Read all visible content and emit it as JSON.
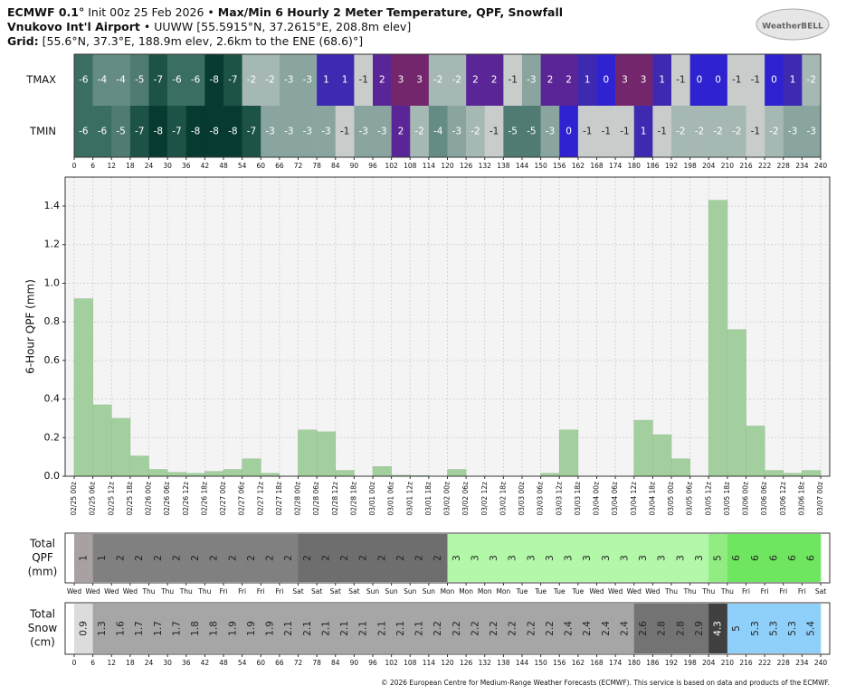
{
  "header": {
    "model": "ECMWF 0.1°",
    "init": "Init 00z 25 Feb 2026 •",
    "title": "Max/Min 6 Hourly 2 Meter Temperature, QPF, Snowfall",
    "station": "Vnukovo Int'l Airport",
    "station_info": "• UUWW [55.5915°N, 37.2615°E, 208.8m elev]",
    "grid_label": "Grid:",
    "grid_info": "[55.6°N, 37.3°E, 188.9m elev, 2.6km to the ENE (68.6)°]",
    "logo": "WeatherBELL"
  },
  "footer": "© 2026 European Centre for Medium-Range Weather Forecasts (ECMWF). This service is based on data and products of the ECMWF.",
  "chart_data": [
    {
      "type": "heatmap",
      "xlim": [
        0,
        240
      ],
      "xticks": [
        0,
        6,
        12,
        18,
        24,
        30,
        36,
        42,
        48,
        54,
        60,
        66,
        72,
        78,
        84,
        90,
        96,
        102,
        108,
        114,
        120,
        126,
        132,
        138,
        144,
        150,
        156,
        162,
        168,
        174,
        180,
        186,
        192,
        198,
        204,
        210,
        216,
        222,
        228,
        234,
        240
      ],
      "rows": [
        {
          "name": "TMAX",
          "values": [
            -6,
            -4,
            -4,
            -5,
            -7,
            -6,
            -6,
            -8,
            -7,
            -2,
            -2,
            -3,
            -3,
            1,
            1,
            -1,
            2,
            3,
            3,
            -2,
            -2,
            2,
            2,
            -1,
            -3,
            2,
            2,
            1,
            0,
            3,
            3,
            1,
            -1,
            0,
            0,
            -1,
            -1,
            0,
            1,
            -2
          ]
        },
        {
          "name": "TMIN",
          "values": [
            -6,
            -6,
            -5,
            -7,
            -8,
            -7,
            -8,
            -8,
            -8,
            -7,
            -3,
            -3,
            -3,
            -3,
            -1,
            -3,
            -3,
            2,
            -2,
            -4,
            -3,
            -2,
            -1,
            -5,
            -5,
            -3,
            0,
            -1,
            -1,
            -1,
            1,
            -1,
            -2,
            -2,
            -2,
            -2,
            -1,
            -2,
            -3,
            -3
          ]
        }
      ],
      "colorscale": [
        [
          -8,
          "#073b31"
        ],
        [
          -7,
          "#1d5347"
        ],
        [
          -6,
          "#3b6e63"
        ],
        [
          -5,
          "#4f7b72"
        ],
        [
          -4,
          "#648c84"
        ],
        [
          -3,
          "#8aa59f"
        ],
        [
          -2,
          "#a6b8b4"
        ],
        [
          -1,
          "#c8cdcc"
        ],
        [
          0,
          "#2f22d0"
        ],
        [
          1,
          "#3d2ab0"
        ],
        [
          2,
          "#5a2596"
        ],
        [
          3,
          "#73266b"
        ]
      ]
    },
    {
      "type": "histogram",
      "ylabel": "6-Hour QPF (mm)",
      "color": "#a3cf9e",
      "grid": true,
      "ylim": [
        0,
        1.55
      ],
      "yticks": [
        {
          "value": 0,
          "label": "0.0"
        },
        0.2,
        0.4,
        0.6,
        0.8,
        {
          "value": 1,
          "label": "1.0"
        },
        1.2,
        1.4
      ],
      "bins": [
        "02/25 00z",
        "02/25 06z",
        "02/25 12z",
        "02/25 18z",
        "02/26 00z",
        "02/26 06z",
        "02/26 12z",
        "02/26 18z",
        "02/27 00z",
        "02/27 06z",
        "02/27 12z",
        "02/27 18z",
        "02/28 00z",
        "02/28 06z",
        "02/28 12z",
        "02/28 18z",
        "03/01 00z",
        "03/01 06z",
        "03/01 12z",
        "03/01 18z",
        "03/02 00z",
        "03/02 06z",
        "03/02 12z",
        "03/02 18z",
        "03/03 00z",
        "03/03 06z",
        "03/03 12z",
        "03/03 18z",
        "03/04 00z",
        "03/04 06z",
        "03/04 12z",
        "03/04 18z",
        "03/05 00z",
        "03/05 06z",
        "03/05 12z",
        "03/05 18z",
        "03/06 00z",
        "03/06 06z",
        "03/06 12z",
        "03/06 18z",
        "03/07 00z"
      ],
      "values": [
        0.92,
        0.37,
        0.3,
        0.105,
        0.035,
        0.02,
        0.015,
        0.025,
        0.035,
        0.09,
        0.015,
        0,
        0.24,
        0.23,
        0.03,
        0,
        0.05,
        0.005,
        0.003,
        0,
        0.035,
        0,
        0,
        0,
        0,
        0.015,
        0.24,
        0,
        0,
        0,
        0.29,
        0.215,
        0.09,
        0,
        1.43,
        0.76,
        0.26,
        0.03,
        0.015,
        0.03
      ]
    },
    {
      "type": "strip",
      "label": [
        "Total",
        "QPF",
        "(mm)"
      ],
      "bins": [
        "Wed",
        "Wed",
        "Wed",
        "Wed",
        "Thu",
        "Thu",
        "Thu",
        "Thu",
        "Fri",
        "Fri",
        "Fri",
        "Fri",
        "Sat",
        "Sat",
        "Sat",
        "Sat",
        "Sun",
        "Sun",
        "Sun",
        "Sun",
        "Mon",
        "Mon",
        "Mon",
        "Mon",
        "Tue",
        "Tue",
        "Tue",
        "Tue",
        "Wed",
        "Wed",
        "Wed",
        "Wed",
        "Thu",
        "Thu",
        "Thu",
        "Thu",
        "Fri",
        "Fri",
        "Fri",
        "Fri",
        "Sat"
      ],
      "values": [
        1,
        1,
        2,
        2,
        2,
        2,
        2,
        2,
        2,
        2,
        2,
        2,
        2,
        2,
        2,
        2,
        2,
        2,
        2,
        2,
        3,
        3,
        3,
        3,
        3,
        3,
        3,
        3,
        3,
        3,
        3,
        3,
        3,
        3,
        5,
        6,
        6,
        6,
        6,
        6
      ],
      "colors": [
        "#a9a1a1",
        "#808080",
        "#808080",
        "#808080",
        "#808080",
        "#808080",
        "#808080",
        "#808080",
        "#808080",
        "#808080",
        "#808080",
        "#808080",
        "#6e6e6e",
        "#6e6e6e",
        "#6e6e6e",
        "#6e6e6e",
        "#6e6e6e",
        "#6e6e6e",
        "#6e6e6e",
        "#6e6e6e",
        "#b3f7a9",
        "#b3f7a9",
        "#b3f7a9",
        "#b3f7a9",
        "#b3f7a9",
        "#b3f7a9",
        "#b3f7a9",
        "#b3f7a9",
        "#b3f7a9",
        "#b3f7a9",
        "#b3f7a9",
        "#b3f7a9",
        "#b3f7a9",
        "#b3f7a9",
        "#91ec82",
        "#6fe65f",
        "#6fe65f",
        "#6fe65f",
        "#6fe65f",
        "#6fe65f"
      ]
    },
    {
      "type": "strip",
      "label": [
        "Total",
        "Snow",
        "(cm)"
      ],
      "xlim": [
        0,
        240
      ],
      "xticks": [
        0,
        6,
        12,
        18,
        24,
        30,
        36,
        42,
        48,
        54,
        60,
        66,
        72,
        78,
        84,
        90,
        96,
        102,
        108,
        114,
        120,
        126,
        132,
        138,
        144,
        150,
        156,
        162,
        168,
        174,
        180,
        186,
        192,
        198,
        204,
        210,
        216,
        222,
        228,
        234,
        240
      ],
      "values": [
        0.9,
        1.3,
        1.6,
        1.7,
        1.7,
        1.7,
        1.8,
        1.8,
        1.9,
        1.9,
        1.9,
        2.1,
        2.1,
        2.1,
        2.1,
        2.1,
        2.1,
        2.1,
        2.1,
        2.2,
        2.2,
        2.2,
        2.2,
        2.2,
        2.2,
        2.2,
        2.4,
        2.4,
        2.4,
        2.4,
        2.6,
        2.8,
        2.8,
        2.9,
        4.3,
        5,
        5.3,
        5.3,
        5.3,
        5.4
      ],
      "colors": [
        "#dcdcdc",
        "#a6a6a6",
        "#a6a6a6",
        "#a6a6a6",
        "#a6a6a6",
        "#a6a6a6",
        "#a6a6a6",
        "#a6a6a6",
        "#a6a6a6",
        "#a6a6a6",
        "#a6a6a6",
        "#a6a6a6",
        "#a6a6a6",
        "#a6a6a6",
        "#a6a6a6",
        "#a6a6a6",
        "#a6a6a6",
        "#a6a6a6",
        "#a6a6a6",
        "#a6a6a6",
        "#a6a6a6",
        "#a6a6a6",
        "#a6a6a6",
        "#a6a6a6",
        "#a6a6a6",
        "#a6a6a6",
        "#a6a6a6",
        "#a6a6a6",
        "#a6a6a6",
        "#a6a6a6",
        "#737373",
        "#737373",
        "#737373",
        "#737373",
        "#404040",
        "#8fd0fa",
        "#8fd0fa",
        "#8fd0fa",
        "#8fd0fa",
        "#8fd0fa"
      ]
    }
  ]
}
